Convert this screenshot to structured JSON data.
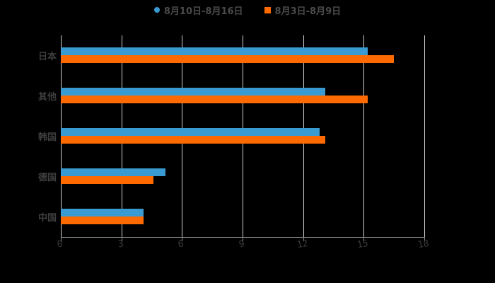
{
  "chart_data": {
    "type": "bar",
    "orientation": "horizontal",
    "title": "",
    "xlabel": "",
    "ylabel": "",
    "categories": [
      "日本",
      "其他",
      "韩国",
      "德国",
      "中国"
    ],
    "series": [
      {
        "name": "8月10日-8月16日",
        "color": "#3a9bd2",
        "values": [
          15.2,
          13.1,
          12.8,
          5.2,
          4.1
        ]
      },
      {
        "name": "8月3日-8月9日",
        "color": "#ff6a00",
        "values": [
          16.5,
          15.2,
          13.1,
          4.6,
          4.1
        ]
      }
    ],
    "xlim": [
      0,
      18
    ],
    "xticks": [
      "0",
      "3",
      "6",
      "9",
      "12",
      "15",
      "18"
    ],
    "grid": true,
    "legend_position": "top"
  },
  "legend": {
    "items": [
      {
        "label": "8月10日-8月16日",
        "color": "#3a9bd2",
        "shape": "circle"
      },
      {
        "label": "8月3日-8月9日",
        "color": "#ff6a00",
        "shape": "square"
      }
    ]
  }
}
